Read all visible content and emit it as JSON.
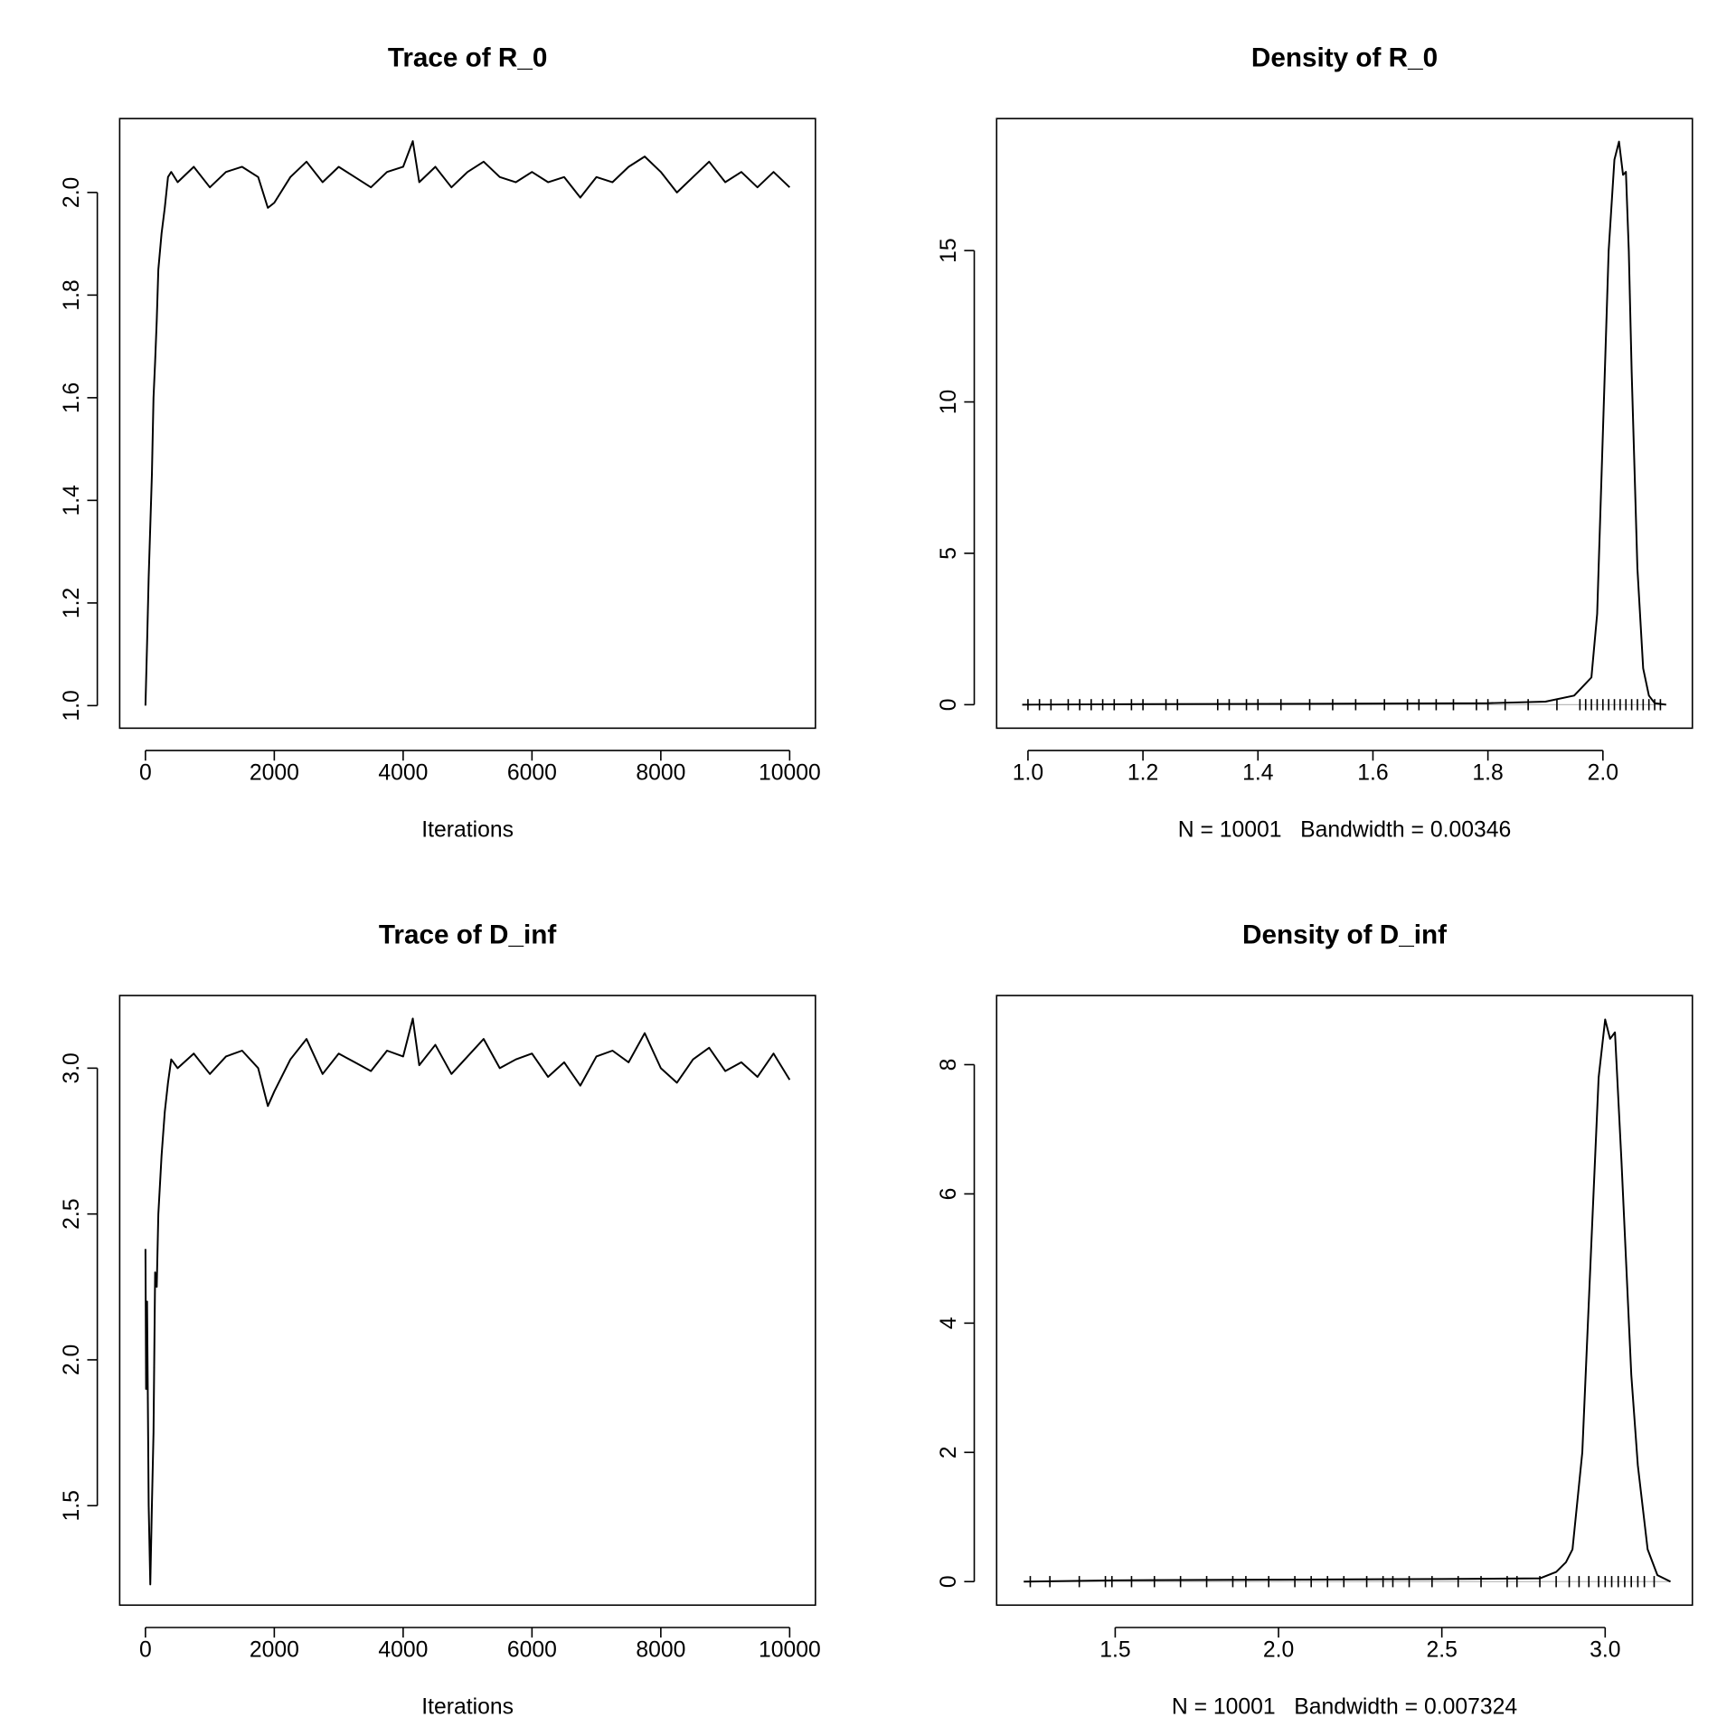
{
  "chart_data": [
    {
      "type": "line",
      "title": "Trace of R_0",
      "x_label": "Iterations",
      "x": [
        0,
        25,
        50,
        75,
        100,
        125,
        150,
        175,
        200,
        250,
        300,
        350,
        400,
        500,
        750,
        1000,
        1250,
        1500,
        1750,
        1900,
        2000,
        2250,
        2500,
        2750,
        3000,
        3250,
        3500,
        3750,
        4000,
        4150,
        4250,
        4500,
        4750,
        5000,
        5250,
        5500,
        5750,
        6000,
        6250,
        6500,
        6750,
        7000,
        7250,
        7500,
        7750,
        8000,
        8250,
        8500,
        8750,
        9000,
        9250,
        9500,
        9750,
        10000
      ],
      "values": [
        1.0,
        1.12,
        1.25,
        1.35,
        1.45,
        1.6,
        1.67,
        1.75,
        1.85,
        1.92,
        1.97,
        2.03,
        2.04,
        2.02,
        2.05,
        2.01,
        2.04,
        2.05,
        2.03,
        1.97,
        1.98,
        2.03,
        2.06,
        2.02,
        2.05,
        2.03,
        2.01,
        2.04,
        2.05,
        2.1,
        2.02,
        2.05,
        2.01,
        2.04,
        2.06,
        2.03,
        2.02,
        2.04,
        2.02,
        2.03,
        1.99,
        2.03,
        2.02,
        2.05,
        2.07,
        2.04,
        2.0,
        2.03,
        2.06,
        2.02,
        2.04,
        2.01,
        2.04,
        2.01
      ],
      "color": "#000000",
      "xlim": [
        -400,
        10400
      ],
      "xticks": [
        0,
        2000,
        4000,
        6000,
        8000,
        10000
      ],
      "ylim": [
        0.956,
        2.144
      ],
      "yticks": [
        {
          "value": 1.0,
          "label": "1.0"
        },
        1.2,
        1.4,
        1.6,
        1.8,
        {
          "value": 2.0,
          "label": "2.0"
        }
      ]
    },
    {
      "type": "density",
      "title": "Density of R_0",
      "x_label": "N = 10001   Bandwidth = 0.00346",
      "x": [
        0.99,
        1.2,
        1.5,
        1.8,
        1.9,
        1.95,
        1.97,
        1.98,
        1.99,
        2.0,
        2.01,
        2.02,
        2.028,
        2.035,
        2.04,
        2.045,
        2.05,
        2.06,
        2.07,
        2.08,
        2.09,
        2.11
      ],
      "values": [
        0,
        0.02,
        0.03,
        0.05,
        0.1,
        0.3,
        0.7,
        0.9,
        3,
        9,
        15,
        18,
        18.6,
        17.5,
        17.6,
        15,
        11,
        4.5,
        1.2,
        0.3,
        0.05,
        0
      ],
      "rug": [
        1.0,
        1.02,
        1.04,
        1.07,
        1.09,
        1.11,
        1.13,
        1.15,
        1.18,
        1.2,
        1.24,
        1.26,
        1.33,
        1.35,
        1.38,
        1.4,
        1.44,
        1.49,
        1.53,
        1.57,
        1.62,
        1.66,
        1.68,
        1.71,
        1.74,
        1.78,
        1.8,
        1.83,
        1.87,
        1.92,
        1.96,
        1.97,
        1.98,
        1.99,
        2.0,
        2.01,
        2.02,
        2.03,
        2.04,
        2.05,
        2.06,
        2.07,
        2.08,
        2.09,
        2.1
      ],
      "color": "#000000",
      "xlim": [
        0.9455,
        2.1556
      ],
      "xticks": [
        {
          "value": 1.0,
          "label": "1.0"
        },
        1.2,
        1.4,
        1.6,
        1.8,
        {
          "value": 2.0,
          "label": "2.0"
        }
      ],
      "ylim": [
        -0.776,
        19.36
      ],
      "yticks": [
        0,
        5,
        10,
        15
      ]
    },
    {
      "type": "line",
      "title": "Trace of D_inf",
      "x_label": "Iterations",
      "x": [
        0,
        10,
        25,
        50,
        75,
        100,
        125,
        150,
        175,
        200,
        250,
        300,
        350,
        400,
        500,
        750,
        1000,
        1250,
        1500,
        1750,
        1900,
        2000,
        2250,
        2500,
        2750,
        3000,
        3250,
        3500,
        3750,
        4000,
        4150,
        4250,
        4500,
        4750,
        5000,
        5250,
        5500,
        5750,
        6000,
        6250,
        6500,
        6750,
        7000,
        7250,
        7500,
        7750,
        8000,
        8250,
        8500,
        8750,
        9000,
        9250,
        9500,
        9750,
        10000
      ],
      "values": [
        2.38,
        1.9,
        2.2,
        1.5,
        1.23,
        1.5,
        1.75,
        2.3,
        2.25,
        2.5,
        2.7,
        2.85,
        2.95,
        3.03,
        3.0,
        3.05,
        2.98,
        3.04,
        3.06,
        3.0,
        2.87,
        2.92,
        3.03,
        3.1,
        2.98,
        3.05,
        3.02,
        2.99,
        3.06,
        3.04,
        3.17,
        3.01,
        3.08,
        2.98,
        3.04,
        3.1,
        3.0,
        3.03,
        3.05,
        2.97,
        3.02,
        2.94,
        3.04,
        3.06,
        3.02,
        3.12,
        3.0,
        2.95,
        3.03,
        3.07,
        2.99,
        3.02,
        2.97,
        3.05,
        2.96
      ],
      "color": "#000000",
      "xlim": [
        -400,
        10400
      ],
      "xticks": [
        0,
        2000,
        4000,
        6000,
        8000,
        10000
      ],
      "ylim": [
        1.159,
        3.249
      ],
      "yticks": [
        1.5,
        {
          "value": 2.0,
          "label": "2.0"
        },
        2.5,
        {
          "value": 3.0,
          "label": "3.0"
        }
      ]
    },
    {
      "type": "density",
      "title": "Density of D_inf",
      "x_label": "N = 10001   Bandwidth = 0.007324",
      "x": [
        1.22,
        1.5,
        2.0,
        2.5,
        2.8,
        2.85,
        2.88,
        2.9,
        2.93,
        2.96,
        2.98,
        3.0,
        3.015,
        3.03,
        3.05,
        3.08,
        3.1,
        3.13,
        3.16,
        3.2
      ],
      "values": [
        0,
        0.02,
        0.03,
        0.04,
        0.05,
        0.15,
        0.3,
        0.5,
        2,
        5.5,
        7.8,
        8.7,
        8.4,
        8.5,
        6.5,
        3.2,
        1.8,
        0.5,
        0.1,
        0
      ],
      "rug": [
        1.24,
        1.3,
        1.39,
        1.47,
        1.49,
        1.55,
        1.62,
        1.7,
        1.78,
        1.86,
        1.9,
        1.97,
        2.05,
        2.1,
        2.15,
        2.2,
        2.27,
        2.32,
        2.35,
        2.4,
        2.47,
        2.55,
        2.62,
        2.7,
        2.73,
        2.8,
        2.85,
        2.89,
        2.92,
        2.95,
        2.98,
        3.0,
        3.02,
        3.04,
        3.06,
        3.08,
        3.1,
        3.12,
        3.15
      ],
      "color": "#000000",
      "xlim": [
        1.137,
        3.267
      ],
      "xticks": [
        1.5,
        {
          "value": 2.0,
          "label": "2.0"
        },
        2.5,
        {
          "value": 3.0,
          "label": "3.0"
        }
      ],
      "ylim": [
        -0.364,
        9.07
      ],
      "yticks": [
        0,
        2,
        4,
        6,
        8
      ]
    }
  ]
}
